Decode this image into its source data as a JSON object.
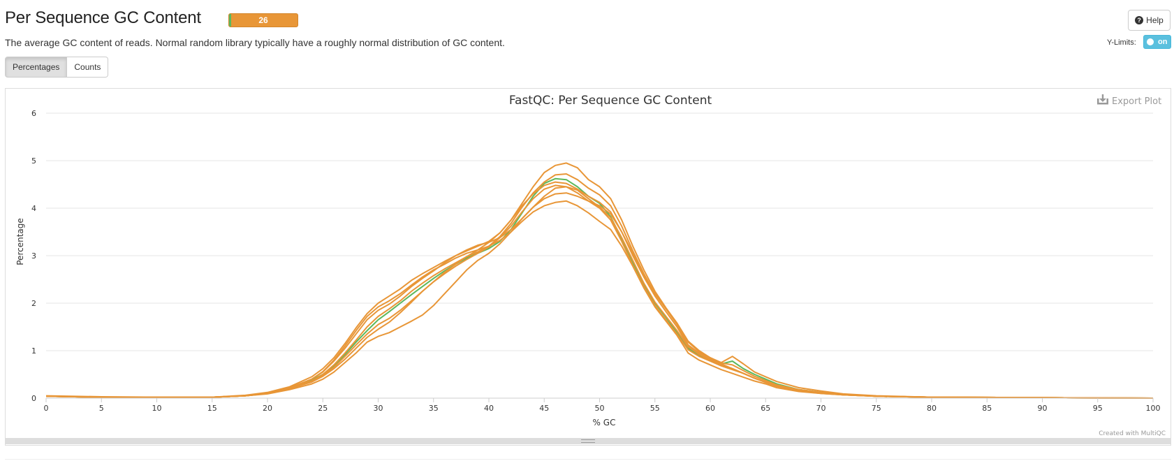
{
  "header": {
    "title": "Per Sequence GC Content",
    "badge_count": "26",
    "description": "The average GC content of reads. Normal random library typically have a roughly normal distribution of GC content.",
    "help_label": "Help"
  },
  "controls": {
    "ylimits_label": "Y-Limits:",
    "ylimits_toggle": "on",
    "tabs": [
      "Percentages",
      "Counts"
    ],
    "active_tab": "Percentages"
  },
  "plot": {
    "export_label": "Export Plot",
    "credit": "Created with MultiQC"
  },
  "colors": {
    "warn": "#e89637",
    "pass": "#5cb85c",
    "toggle": "#5bc0de"
  },
  "chart_data": {
    "type": "line",
    "title": "FastQC: Per Sequence GC Content",
    "xlabel": "% GC",
    "ylabel": "Percentage",
    "xlim": [
      0,
      100
    ],
    "ylim": [
      0,
      6
    ],
    "x_ticks": [
      0,
      5,
      10,
      15,
      20,
      25,
      30,
      35,
      40,
      45,
      50,
      55,
      60,
      65,
      70,
      75,
      80,
      85,
      90,
      95,
      100
    ],
    "y_ticks": [
      0,
      1,
      2,
      3,
      4,
      5,
      6
    ],
    "grid": true,
    "legend": "none",
    "x": [
      0,
      5,
      10,
      15,
      18,
      20,
      22,
      24,
      25,
      26,
      27,
      28,
      29,
      30,
      31,
      32,
      33,
      34,
      35,
      36,
      37,
      38,
      39,
      40,
      41,
      42,
      43,
      44,
      45,
      46,
      47,
      48,
      49,
      50,
      51,
      52,
      53,
      54,
      55,
      56,
      57,
      58,
      59,
      60,
      61,
      62,
      63,
      64,
      65,
      66,
      68,
      70,
      72,
      75,
      80,
      90,
      100
    ],
    "series": [
      {
        "color": "#5cb85c",
        "values": [
          0.04,
          0.02,
          0.02,
          0.02,
          0.05,
          0.1,
          0.2,
          0.38,
          0.5,
          0.68,
          0.92,
          1.18,
          1.42,
          1.65,
          1.82,
          2.0,
          2.18,
          2.35,
          2.52,
          2.68,
          2.82,
          2.95,
          3.05,
          3.15,
          3.3,
          3.55,
          3.9,
          4.25,
          4.52,
          4.62,
          4.6,
          4.45,
          4.25,
          4.1,
          3.82,
          3.35,
          2.85,
          2.4,
          2.0,
          1.7,
          1.38,
          1.05,
          0.9,
          0.8,
          0.72,
          0.78,
          0.62,
          0.5,
          0.4,
          0.3,
          0.18,
          0.12,
          0.08,
          0.04,
          0.02,
          0.01,
          0.0
        ]
      },
      {
        "color": "#e89637",
        "values": [
          0.04,
          0.02,
          0.02,
          0.02,
          0.05,
          0.1,
          0.2,
          0.35,
          0.48,
          0.65,
          0.88,
          1.12,
          1.35,
          1.55,
          1.68,
          1.85,
          2.05,
          2.25,
          2.45,
          2.62,
          2.78,
          2.92,
          3.05,
          3.18,
          3.38,
          3.62,
          3.92,
          4.2,
          4.4,
          4.48,
          4.45,
          4.32,
          4.15,
          4.0,
          3.75,
          3.3,
          2.8,
          2.35,
          1.95,
          1.65,
          1.35,
          1.02,
          0.88,
          0.78,
          0.68,
          0.6,
          0.52,
          0.42,
          0.33,
          0.25,
          0.15,
          0.1,
          0.07,
          0.04,
          0.02,
          0.01,
          0.0
        ]
      },
      {
        "color": "#e89637",
        "values": [
          0.05,
          0.03,
          0.02,
          0.02,
          0.06,
          0.12,
          0.24,
          0.45,
          0.62,
          0.85,
          1.15,
          1.48,
          1.78,
          2.0,
          2.15,
          2.3,
          2.48,
          2.62,
          2.75,
          2.88,
          3.0,
          3.1,
          3.2,
          3.3,
          3.48,
          3.75,
          4.1,
          4.45,
          4.75,
          4.9,
          4.95,
          4.85,
          4.6,
          4.45,
          4.2,
          3.75,
          3.2,
          2.7,
          2.25,
          1.9,
          1.58,
          1.2,
          1.0,
          0.85,
          0.75,
          0.88,
          0.72,
          0.55,
          0.45,
          0.35,
          0.22,
          0.15,
          0.09,
          0.05,
          0.02,
          0.01,
          0.0
        ]
      },
      {
        "color": "#e89637",
        "values": [
          0.04,
          0.02,
          0.02,
          0.02,
          0.05,
          0.09,
          0.18,
          0.3,
          0.4,
          0.55,
          0.75,
          0.95,
          1.18,
          1.3,
          1.38,
          1.5,
          1.62,
          1.75,
          1.95,
          2.2,
          2.45,
          2.7,
          2.9,
          3.05,
          3.25,
          3.5,
          3.78,
          4.02,
          4.2,
          4.3,
          4.32,
          4.25,
          4.15,
          4.05,
          3.88,
          3.5,
          3.05,
          2.6,
          2.2,
          1.88,
          1.58,
          1.18,
          0.98,
          0.85,
          0.72,
          0.62,
          0.52,
          0.42,
          0.34,
          0.26,
          0.16,
          0.11,
          0.07,
          0.04,
          0.02,
          0.01,
          0.0
        ]
      },
      {
        "color": "#e89637",
        "values": [
          0.04,
          0.02,
          0.02,
          0.02,
          0.05,
          0.1,
          0.22,
          0.4,
          0.55,
          0.78,
          1.05,
          1.35,
          1.65,
          1.85,
          1.98,
          2.15,
          2.35,
          2.52,
          2.68,
          2.85,
          3.0,
          3.12,
          3.22,
          3.28,
          3.38,
          3.55,
          3.78,
          4.02,
          4.25,
          4.42,
          4.45,
          4.38,
          4.2,
          4.02,
          3.8,
          3.38,
          2.9,
          2.42,
          2.02,
          1.72,
          1.42,
          1.08,
          0.92,
          0.82,
          0.7,
          0.62,
          0.52,
          0.42,
          0.34,
          0.26,
          0.16,
          0.11,
          0.08,
          0.04,
          0.02,
          0.01,
          0.0
        ]
      },
      {
        "color": "#e89637",
        "values": [
          0.04,
          0.02,
          0.02,
          0.02,
          0.05,
          0.1,
          0.21,
          0.4,
          0.56,
          0.8,
          1.1,
          1.42,
          1.72,
          1.92,
          2.05,
          2.2,
          2.38,
          2.55,
          2.7,
          2.82,
          2.95,
          3.05,
          3.12,
          3.2,
          3.32,
          3.5,
          3.72,
          3.92,
          4.05,
          4.12,
          4.15,
          4.05,
          3.9,
          3.72,
          3.55,
          3.2,
          2.78,
          2.32,
          1.92,
          1.62,
          1.32,
          0.95,
          0.8,
          0.7,
          0.6,
          0.52,
          0.44,
          0.36,
          0.3,
          0.22,
          0.14,
          0.1,
          0.07,
          0.04,
          0.02,
          0.01,
          0.0
        ]
      },
      {
        "color": "#e89637",
        "values": [
          0.04,
          0.02,
          0.02,
          0.02,
          0.05,
          0.1,
          0.2,
          0.36,
          0.5,
          0.7,
          0.95,
          1.22,
          1.5,
          1.72,
          1.88,
          2.05,
          2.25,
          2.42,
          2.58,
          2.72,
          2.85,
          2.98,
          3.08,
          3.2,
          3.4,
          3.68,
          4.02,
          4.32,
          4.55,
          4.7,
          4.72,
          4.6,
          4.42,
          4.28,
          4.05,
          3.62,
          3.1,
          2.62,
          2.2,
          1.88,
          1.55,
          1.12,
          0.95,
          0.85,
          0.74,
          0.7,
          0.58,
          0.46,
          0.37,
          0.28,
          0.18,
          0.12,
          0.08,
          0.04,
          0.02,
          0.01,
          0.0
        ]
      },
      {
        "color": "#e89637",
        "values": [
          0.04,
          0.02,
          0.02,
          0.02,
          0.05,
          0.1,
          0.2,
          0.34,
          0.46,
          0.62,
          0.82,
          1.05,
          1.28,
          1.45,
          1.6,
          1.8,
          2.02,
          2.25,
          2.45,
          2.65,
          2.82,
          2.98,
          3.12,
          3.28,
          3.48,
          3.75,
          4.05,
          4.3,
          4.48,
          4.55,
          4.52,
          4.4,
          4.25,
          4.12,
          3.92,
          3.5,
          3.0,
          2.55,
          2.15,
          1.82,
          1.5,
          1.1,
          0.92,
          0.8,
          0.7,
          0.62,
          0.52,
          0.42,
          0.34,
          0.26,
          0.16,
          0.11,
          0.07,
          0.04,
          0.02,
          0.01,
          0.0
        ]
      }
    ]
  }
}
